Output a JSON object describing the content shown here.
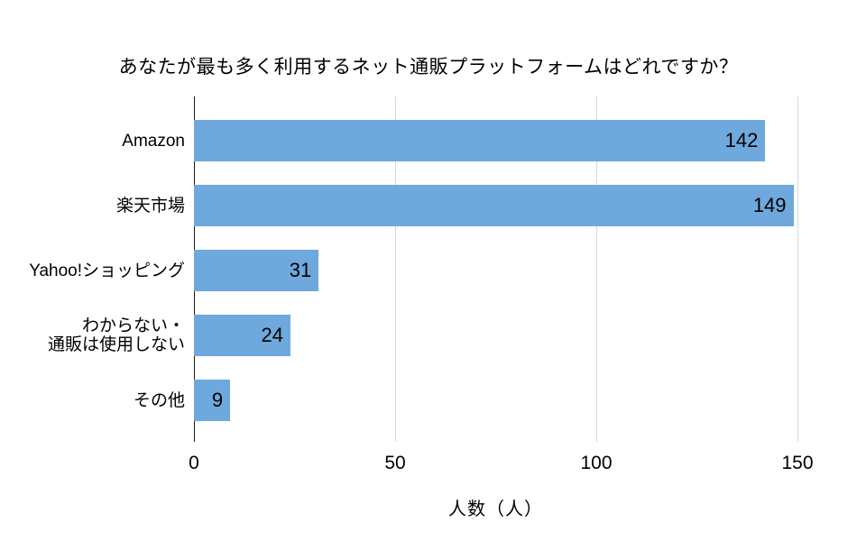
{
  "chart_data": {
    "type": "bar",
    "orientation": "horizontal",
    "title": "あなたが最も多く利用するネット通販プラットフォームはどれですか？",
    "categories": [
      "Amazon",
      "楽天市場",
      "Yahoo!ショッピング",
      "わからない・\n通販は使用しない",
      "その他"
    ],
    "values": [
      142,
      149,
      31,
      24,
      9
    ],
    "value_labels": [
      "142",
      "149",
      "31",
      "24",
      "9"
    ],
    "xlabel": "人数（人）",
    "xlim": [
      0,
      150
    ],
    "xticks": [
      0,
      50,
      100,
      150
    ],
    "xtick_labels": [
      "0",
      "50",
      "100",
      "150"
    ],
    "grid": "vertical-gridlines-on",
    "legend": "none",
    "colors": {
      "bar": "#6FA8DC",
      "gridline": "#D9D9D9",
      "axis_line": "#1A1A1A",
      "text": "#000000",
      "background": "#FFFFFF"
    }
  }
}
